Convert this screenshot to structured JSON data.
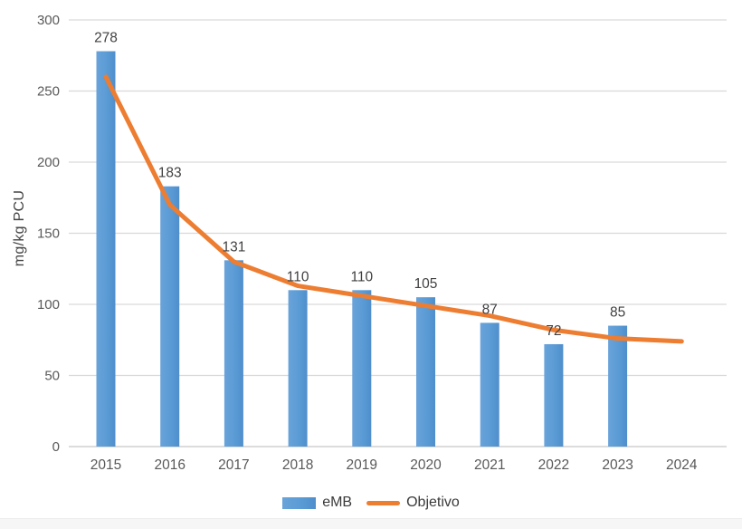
{
  "chart_data": {
    "type": "bar",
    "subtype": "bar-line-combo",
    "title": "",
    "xlabel": "",
    "ylabel": "mg/kg PCU",
    "categories": [
      "2015",
      "2016",
      "2017",
      "2018",
      "2019",
      "2020",
      "2021",
      "2022",
      "2023",
      "2024"
    ],
    "series": [
      {
        "name": "eMB",
        "type": "bar",
        "color": "#5b9bd5",
        "values": [
          278,
          183,
          131,
          110,
          110,
          105,
          87,
          72,
          85,
          null
        ],
        "data_labels": [
          "278",
          "183",
          "131",
          "110",
          "110",
          "105",
          "87",
          "72",
          "85",
          ""
        ]
      },
      {
        "name": "Objetivo",
        "type": "line",
        "color": "#ed7d31",
        "values": [
          260,
          170,
          130,
          113,
          106,
          99,
          92,
          82,
          76,
          74
        ]
      }
    ],
    "ylim": [
      0,
      300
    ],
    "ytick_interval": 50,
    "yticks": [
      "0",
      "50",
      "100",
      "150",
      "200",
      "250",
      "300"
    ],
    "grid": true,
    "legend_position": "bottom"
  },
  "colors": {
    "bar_fill": "#5b9bd5",
    "bar_fill_light": "#69a3da",
    "bar_fill_dark": "#4e8ecb",
    "line": "#ed7d31",
    "gridline": "#d9d9d9",
    "axis_line": "#c6c6c6",
    "tick_text": "#595959",
    "data_label_text": "#404040",
    "legend_text": "#3a3a3a",
    "background": "#ffffff"
  },
  "legend": {
    "emb_label": "eMB",
    "objetivo_label": "Objetivo"
  }
}
